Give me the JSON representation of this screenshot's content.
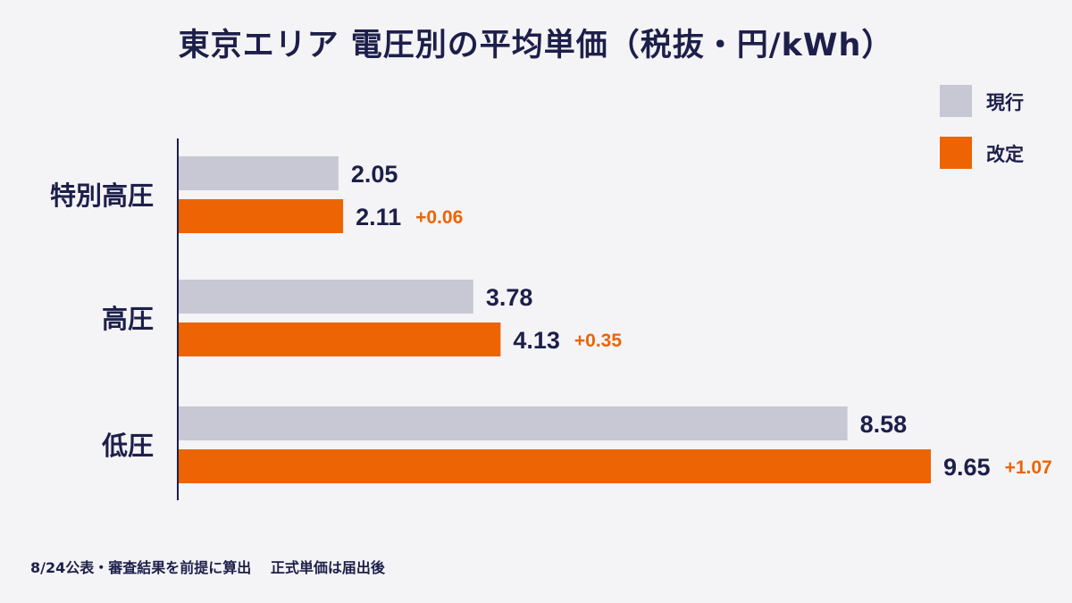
{
  "title": "東京エリア 電圧別の平均単価（税抜・円/kWh）",
  "legend": [
    {
      "label": "現行",
      "color": "#c7c8d4"
    },
    {
      "label": "改定",
      "color": "#ec6404"
    }
  ],
  "footnote": "8/24公表・審査結果を前提に算出　 正式単価は届出後",
  "colors": {
    "text": "#1d1f4a",
    "accent": "#ec6404",
    "current": "#c7c8d4",
    "axis": "#1d1f4a"
  },
  "chart_data": {
    "type": "bar",
    "orientation": "horizontal",
    "title": "東京エリア 電圧別の平均単価（税抜・円/kWh）",
    "xlabel": "",
    "ylabel": "",
    "categories": [
      "特別高圧",
      "高圧",
      "低圧"
    ],
    "series": [
      {
        "name": "現行",
        "values": [
          2.05,
          3.78,
          8.58
        ],
        "labels": [
          "2.05",
          "3.78",
          "8.58"
        ],
        "color": "#c7c8d4"
      },
      {
        "name": "改定",
        "values": [
          2.11,
          4.13,
          9.65
        ],
        "labels": [
          "2.11",
          "4.13",
          "9.65"
        ],
        "color": "#ec6404"
      }
    ],
    "differences": [
      "+0.06",
      "+0.35",
      "+1.07"
    ],
    "xlim": [
      0,
      9.65
    ],
    "grid": false,
    "legend_position": "top-right"
  }
}
